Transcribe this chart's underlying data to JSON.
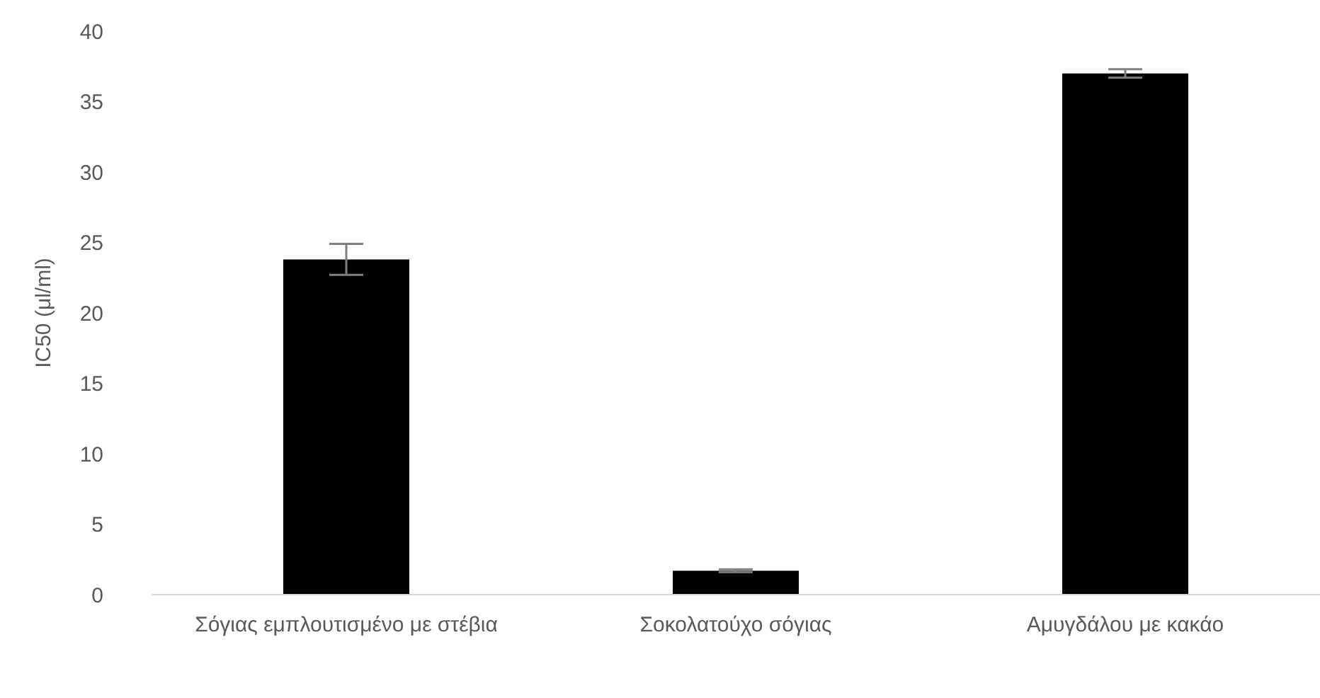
{
  "chart_data": {
    "type": "bar",
    "ylabel": "IC50 (μl/ml)",
    "categories": [
      "Σόγιας εμπλουτισμένο με στέβια",
      "Σοκολατούχο σόγιας",
      "Αμυγδάλου με κακάο"
    ],
    "values": [
      23.8,
      1.7,
      37.0
    ],
    "errors": [
      1.1,
      0.1,
      0.3
    ],
    "color": "#000000",
    "ylim": [
      0,
      40
    ],
    "yticks": [
      0,
      5,
      10,
      15,
      20,
      25,
      30,
      35,
      40
    ],
    "grid": false,
    "legend": false
  }
}
